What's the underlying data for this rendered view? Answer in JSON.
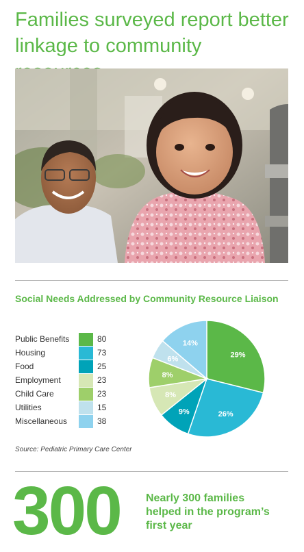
{
  "headline": "Families surveyed report better linkage to community resources.",
  "colors": {
    "brand_green": "#5bb848",
    "Public Benefits": "#5bb848",
    "Housing": "#29b9d5",
    "Food": "#00a3b8",
    "Employment": "#d6e7b5",
    "Child Care": "#9ecf6a",
    "Utilities": "#bfe1ed",
    "Miscellaneous": "#8ed2ee"
  },
  "photo": {
    "subject": "smiling young girl in pink floral top with a smiling man in the background, outdoors"
  },
  "chart_data": {
    "type": "pie",
    "title": "Social Needs Addressed by Community Resource Liaison",
    "categories": [
      "Public Benefits",
      "Housing",
      "Food",
      "Employment",
      "Child Care",
      "Utilities",
      "Miscellaneous"
    ],
    "values": [
      80,
      73,
      25,
      23,
      23,
      15,
      38
    ],
    "percent_labels": [
      "29%",
      "26%",
      "9%",
      "8%",
      "8%",
      "6%",
      "14%"
    ],
    "legend_placement": "left"
  },
  "source": "Source: Pediatric Primary Care Center",
  "stat": {
    "number": "300",
    "caption_lines": [
      "Nearly 300 families",
      "helped in the program’s",
      "first year"
    ]
  }
}
